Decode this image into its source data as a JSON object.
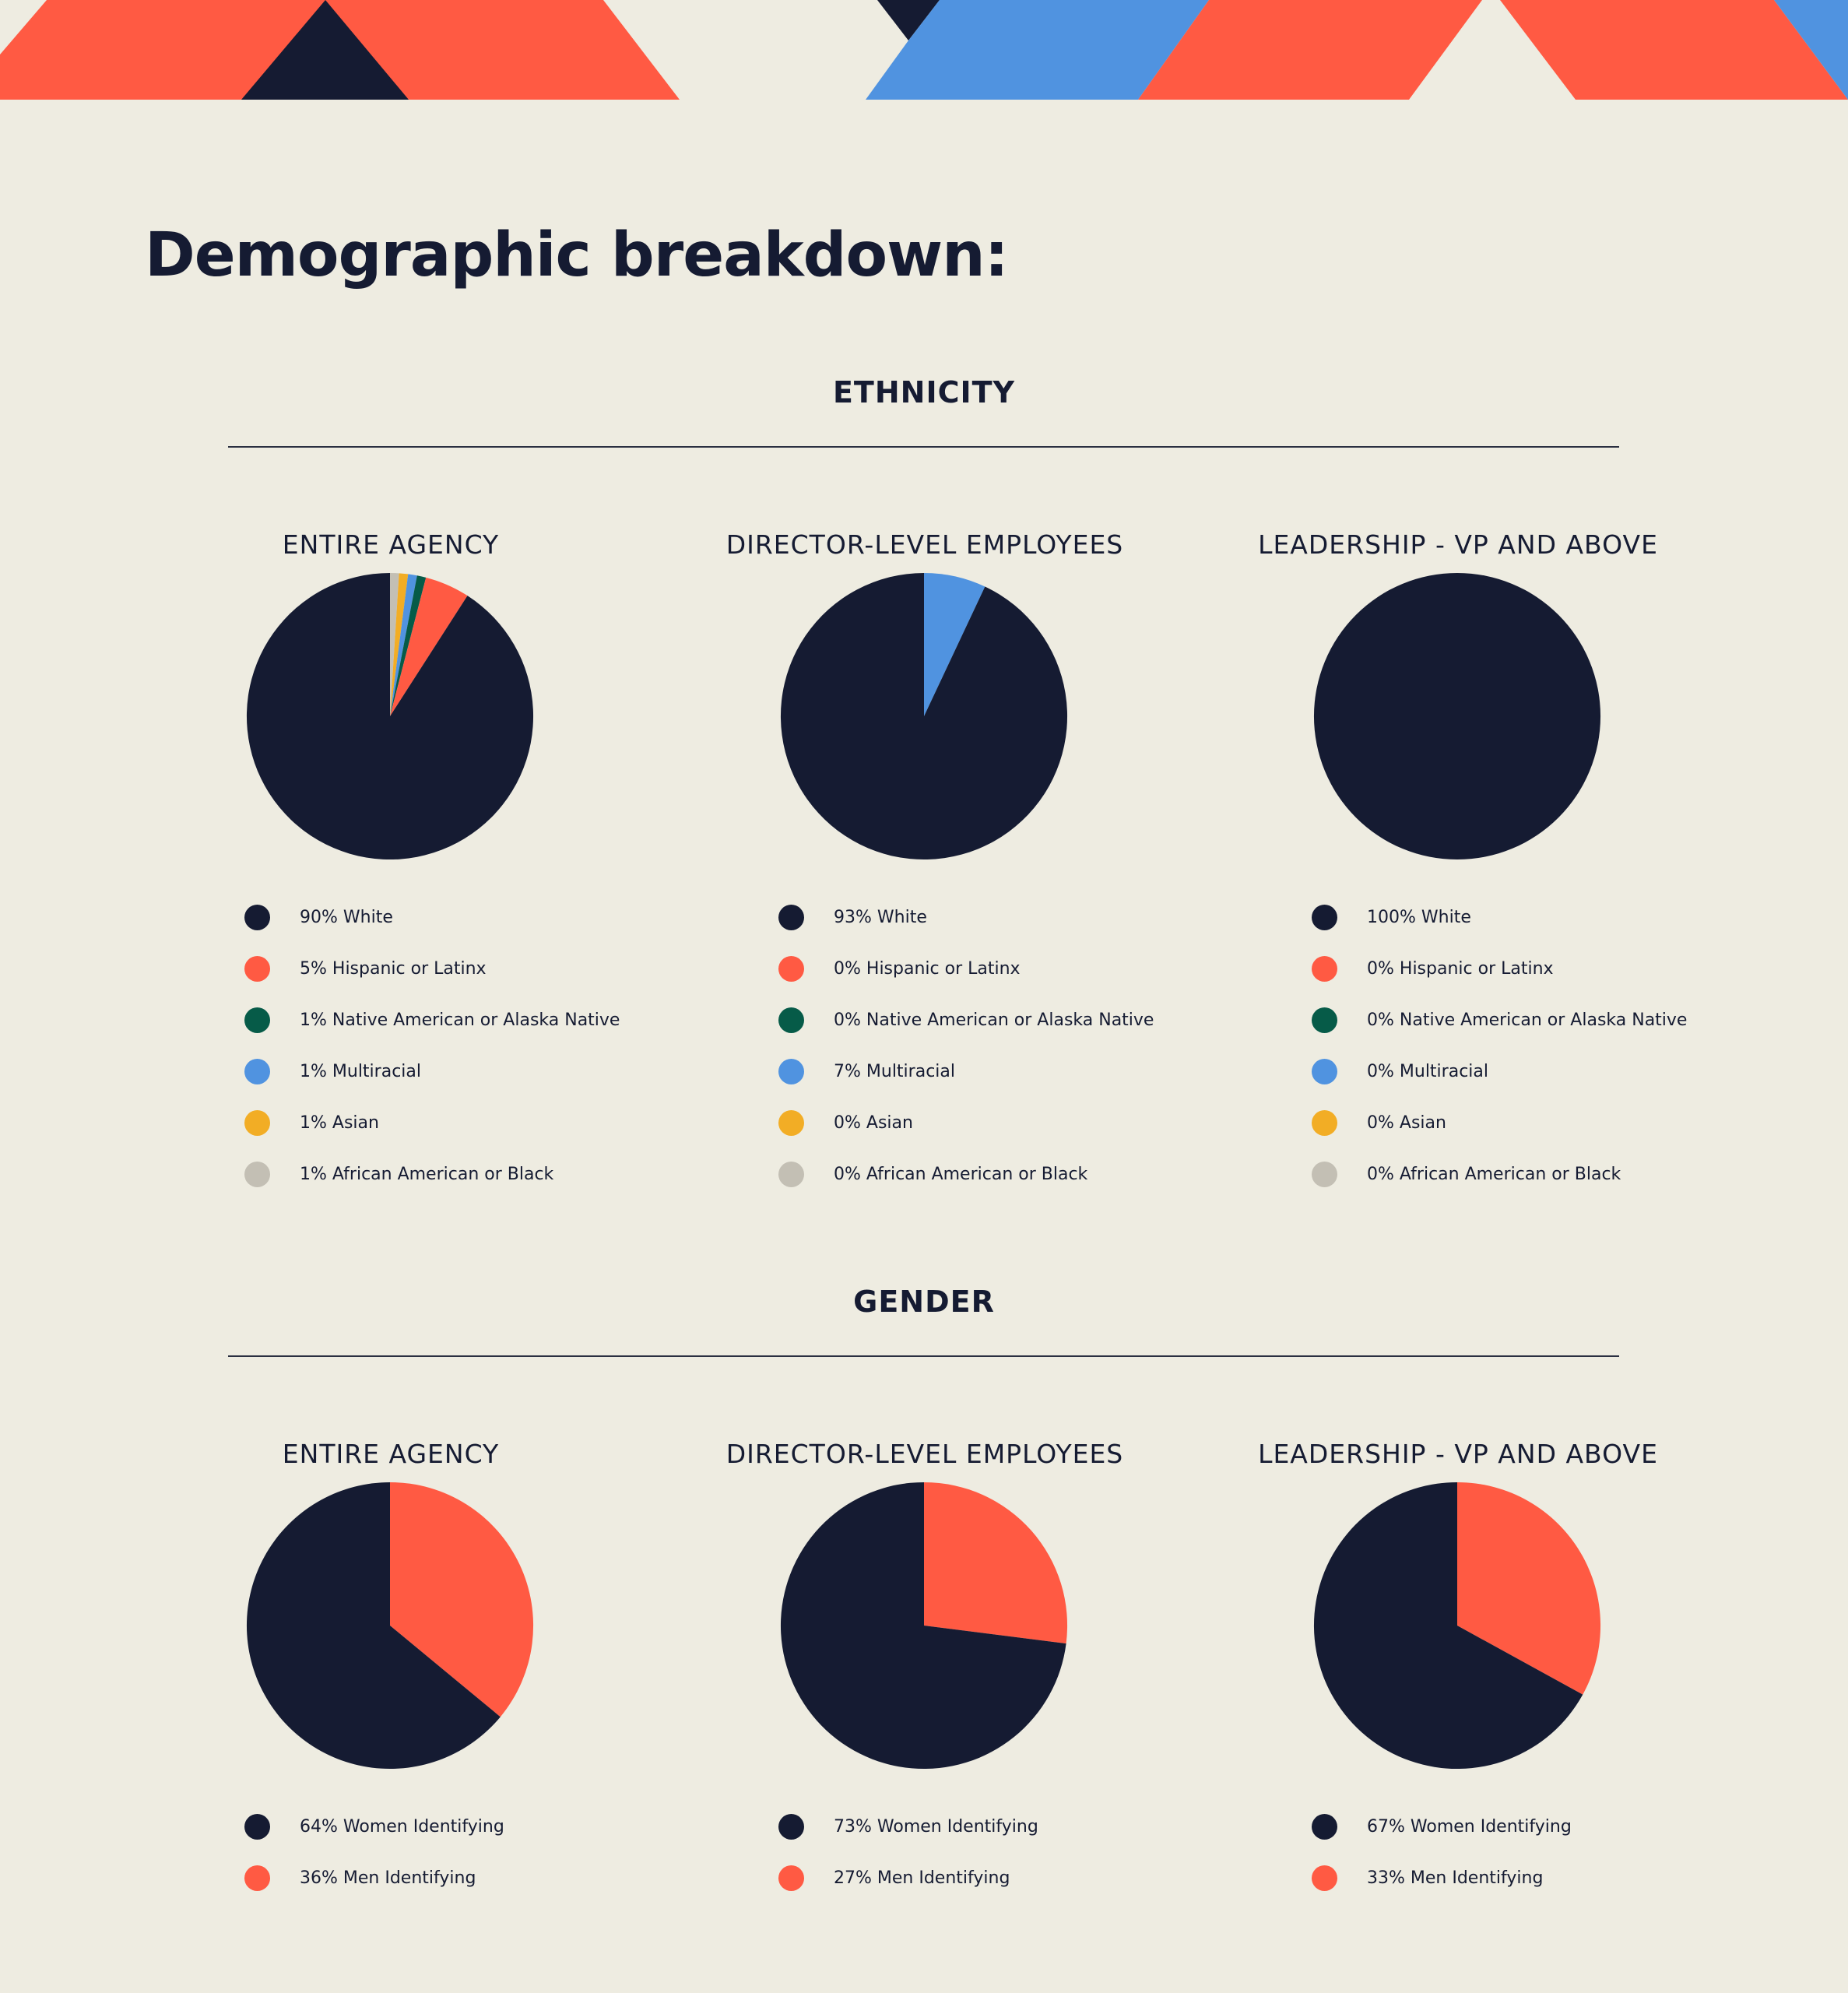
{
  "colors": {
    "background": "#eeece1",
    "navy": "#151b32",
    "coral": "#ff5a43",
    "teal": "#065b48",
    "blue": "#5093e0",
    "yellow": "#f2ad25",
    "gray": "#c3bfb4"
  },
  "page_title": "Demographic breakdown:",
  "sections": [
    {
      "title": "ETHNICITY"
    },
    {
      "title": "GENDER"
    }
  ],
  "chart_data": [
    {
      "type": "pie",
      "title": "ENTIRE AGENCY",
      "labels": [
        "90% White",
        "5% Hispanic or Latinx",
        "1% Native American or Alaska Native",
        "1% Multiracial",
        "1% Asian",
        "1% African American or Black"
      ],
      "values": [
        90,
        5,
        1,
        1,
        1,
        1
      ],
      "colors": [
        "#151b32",
        "#ff5a43",
        "#065b48",
        "#5093e0",
        "#f2ad25",
        "#c3bfb4"
      ]
    },
    {
      "type": "pie",
      "title": "DIRECTOR-LEVEL EMPLOYEES",
      "labels": [
        "93% White",
        "0% Hispanic or Latinx",
        "0% Native American or Alaska Native",
        "7% Multiracial",
        "0% Asian",
        "0% African American or Black"
      ],
      "values": [
        93,
        0,
        0,
        7,
        0,
        0
      ],
      "colors": [
        "#151b32",
        "#ff5a43",
        "#065b48",
        "#5093e0",
        "#f2ad25",
        "#c3bfb4"
      ]
    },
    {
      "type": "pie",
      "title": "LEADERSHIP - VP AND ABOVE",
      "labels": [
        "100% White",
        "0% Hispanic or Latinx",
        "0% Native American or Alaska Native",
        "0% Multiracial",
        "0% Asian",
        "0% African American or Black"
      ],
      "values": [
        100,
        0,
        0,
        0,
        0,
        0
      ],
      "colors": [
        "#151b32",
        "#ff5a43",
        "#065b48",
        "#5093e0",
        "#f2ad25",
        "#c3bfb4"
      ]
    },
    {
      "type": "pie",
      "title": "ENTIRE AGENCY",
      "labels": [
        "64% Women Identifying",
        "36% Men Identifying"
      ],
      "values": [
        64,
        36
      ],
      "colors": [
        "#151b32",
        "#ff5a43"
      ]
    },
    {
      "type": "pie",
      "title": "DIRECTOR-LEVEL EMPLOYEES",
      "labels": [
        "73% Women Identifying",
        "27% Men Identifying"
      ],
      "values": [
        73,
        27
      ],
      "colors": [
        "#151b32",
        "#ff5a43"
      ]
    },
    {
      "type": "pie",
      "title": "LEADERSHIP - VP AND ABOVE",
      "labels": [
        "67% Women Identifying",
        "33% Men Identifying"
      ],
      "values": [
        67,
        33
      ],
      "colors": [
        "#151b32",
        "#ff5a43"
      ]
    }
  ]
}
